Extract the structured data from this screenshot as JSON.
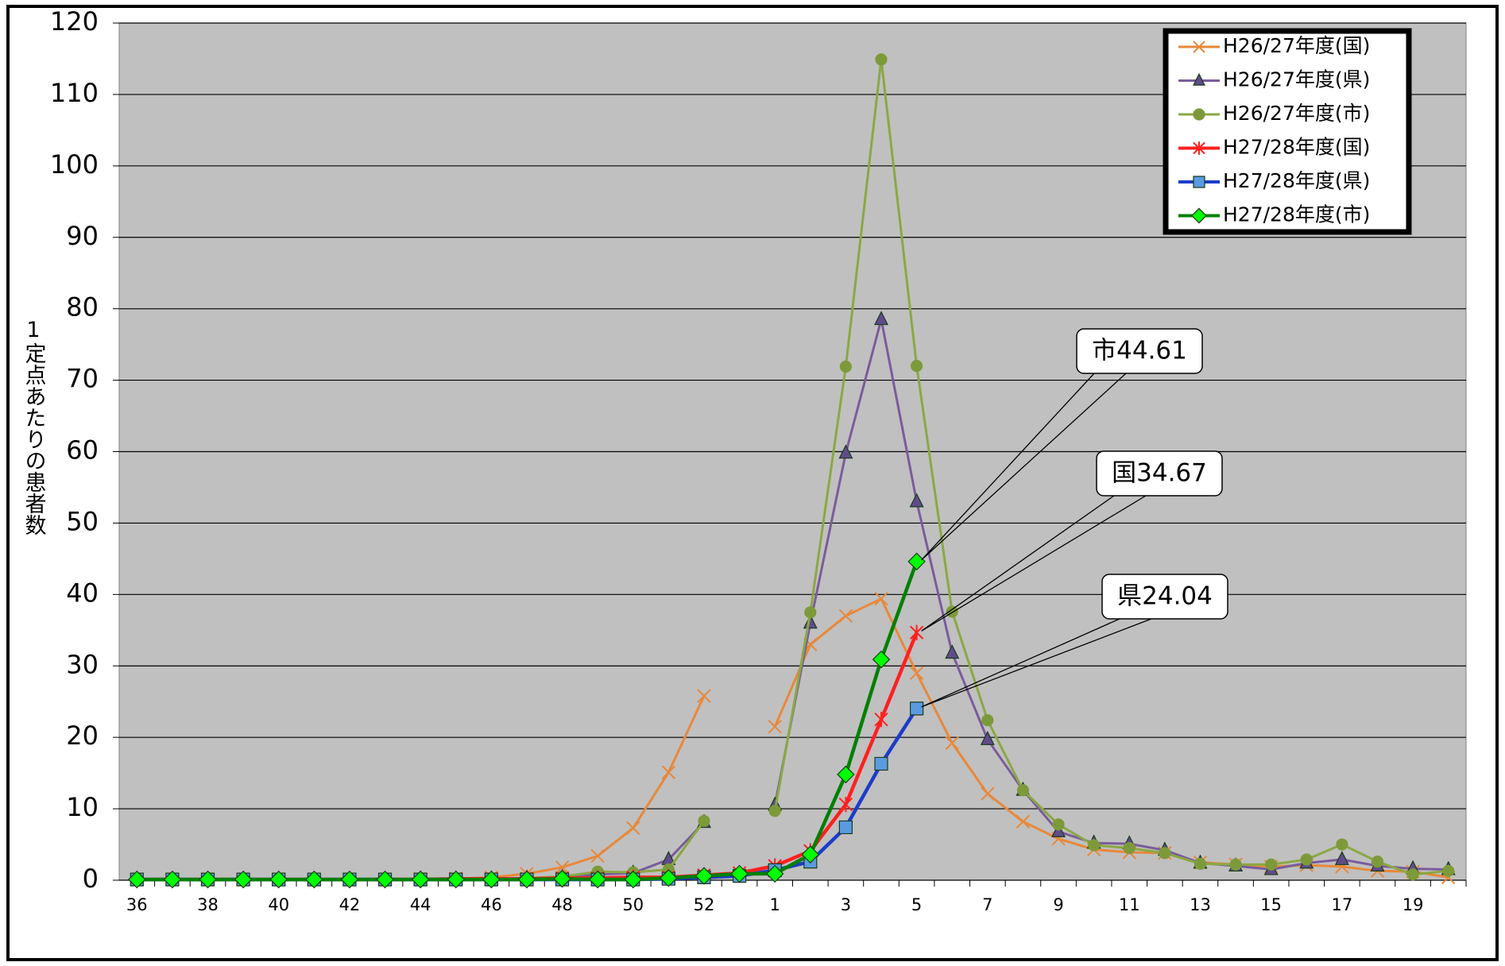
{
  "chart_data": {
    "type": "line",
    "ylabel": "1定点あたりの患者数",
    "categories": [
      "36",
      null,
      "38",
      null,
      "40",
      null,
      "42",
      null,
      "44",
      null,
      "46",
      null,
      "48",
      null,
      "50",
      null,
      "52",
      null,
      "1",
      null,
      "3",
      null,
      "5",
      null,
      "7",
      null,
      "9",
      null,
      "11",
      null,
      "13",
      null,
      "15",
      null,
      "17",
      null,
      "19",
      null
    ],
    "ylim": [
      0,
      120
    ],
    "yticks": [
      0,
      10,
      20,
      30,
      40,
      50,
      60,
      70,
      80,
      90,
      100,
      110,
      120
    ],
    "grid": true,
    "legend": "upper right",
    "series": [
      {
        "name": "H26/27年度(国)",
        "color": "#e8883a",
        "marker": "x",
        "marker_color": "#e8883a",
        "values": [
          0.1,
          0.1,
          0.1,
          0.1,
          0.1,
          0.1,
          0.1,
          0.1,
          0.2,
          0.2,
          0.4,
          0.9,
          1.8,
          3.4,
          7.3,
          15.1,
          25.8,
          null,
          21.5,
          33.0,
          37.0,
          39.4,
          29.0,
          19.2,
          12.1,
          8.2,
          5.8,
          4.3,
          3.9,
          3.8,
          2.5,
          2.2,
          1.9,
          2.1,
          1.9,
          1.3,
          1.2,
          0.4
        ]
      },
      {
        "name": "H26/27年度(県)",
        "color": "#7a5c9c",
        "marker": "triangle",
        "marker_color": "#5f4b8b",
        "values": [
          0.1,
          0.1,
          0.1,
          0.1,
          0.1,
          0.1,
          0.1,
          0.1,
          0.2,
          0.2,
          0.2,
          0.3,
          0.4,
          0.8,
          1.0,
          2.9,
          8.1,
          null,
          10.5,
          36.0,
          59.8,
          78.5,
          53.0,
          31.8,
          19.7,
          12.6,
          6.8,
          5.2,
          5.1,
          4.2,
          2.4,
          2.0,
          1.5,
          2.4,
          2.9,
          2.0,
          1.6,
          1.5
        ]
      },
      {
        "name": "H26/27年度(市)",
        "color": "#8aa843",
        "marker": "circle",
        "marker_color": "#7d9a3a",
        "values": [
          0.1,
          0.1,
          0.1,
          0.1,
          0.1,
          0.1,
          0.1,
          0.1,
          0.2,
          0.2,
          0.2,
          0.3,
          0.5,
          1.2,
          1.1,
          1.5,
          8.3,
          null,
          9.7,
          37.5,
          71.9,
          114.9,
          72.0,
          37.6,
          22.4,
          12.6,
          7.8,
          4.9,
          4.5,
          3.8,
          2.3,
          2.2,
          2.2,
          2.9,
          5.0,
          2.6,
          0.8,
          1.3
        ]
      },
      {
        "name": "H27/28年度(国)",
        "color": "#ff2020",
        "marker": "star",
        "marker_color": "#ff2020",
        "values": [
          0.1,
          0.1,
          0.1,
          0.1,
          0.1,
          0.1,
          0.1,
          0.1,
          0.1,
          0.2,
          0.2,
          0.2,
          0.3,
          0.3,
          0.4,
          0.4,
          0.7,
          1.0,
          2.0,
          4.1,
          10.6,
          22.5,
          34.67,
          null,
          null,
          null,
          null,
          null,
          null,
          null,
          null,
          null,
          null,
          null,
          null,
          null,
          null,
          null
        ]
      },
      {
        "name": "H27/28年度(県)",
        "color": "#1c3cc8",
        "marker": "square",
        "marker_color": "#5a9be0",
        "values": [
          0.1,
          0.1,
          0.1,
          0.1,
          0.1,
          0.1,
          0.1,
          0.1,
          0.1,
          0.1,
          0.1,
          0.1,
          0.1,
          0.1,
          0.1,
          0.2,
          0.4,
          0.6,
          1.4,
          2.6,
          7.4,
          16.3,
          24.04,
          null,
          null,
          null,
          null,
          null,
          null,
          null,
          null,
          null,
          null,
          null,
          null,
          null,
          null,
          null
        ]
      },
      {
        "name": "H27/28年度(市)",
        "color": "#008000",
        "marker": "diamond",
        "marker_color": "#00ff00",
        "values": [
          0.1,
          0.1,
          0.1,
          0.1,
          0.1,
          0.1,
          0.1,
          0.1,
          0.1,
          0.1,
          0.1,
          0.1,
          0.2,
          0.1,
          0.1,
          0.3,
          0.6,
          0.9,
          0.9,
          3.6,
          14.8,
          30.9,
          44.61,
          null,
          null,
          null,
          null,
          null,
          null,
          null,
          null,
          null,
          null,
          null,
          null,
          null,
          null,
          null
        ]
      }
    ],
    "annotations": [
      "市44.61",
      "国34.67",
      "県24.04"
    ]
  }
}
